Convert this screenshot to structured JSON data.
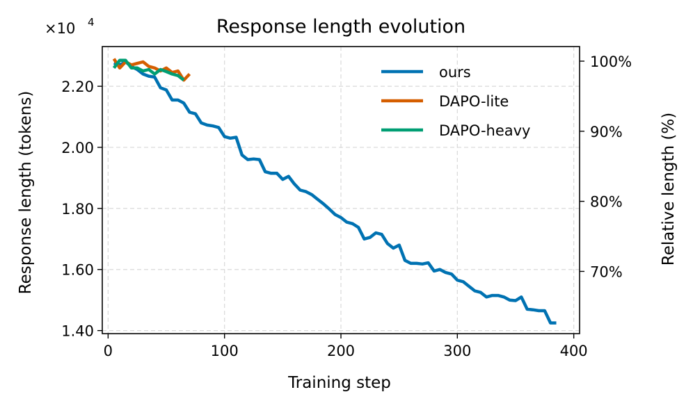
{
  "chart_data": {
    "type": "line",
    "title": "Response length evolution",
    "xlabel": "Training step",
    "ylabel": "Response length (tokens)",
    "y2label": "Relative length (%)",
    "y_multiplier_label": "×10",
    "y_multiplier_exponent": "4",
    "xlim": [
      -5,
      405
    ],
    "ylim": [
      13900,
      23300
    ],
    "y2lim_percent": [
      61.12,
      102.08
    ],
    "x_ticks": [
      0,
      100,
      200,
      300,
      400
    ],
    "x_tick_labels": [
      "0",
      "100",
      "200",
      "300",
      "400"
    ],
    "y_ticks": [
      14000,
      16000,
      18000,
      20000,
      22000
    ],
    "y_tick_labels": [
      "1.40",
      "1.60",
      "1.80",
      "2.00",
      "2.20"
    ],
    "y2_ticks": [
      70,
      80,
      90,
      100
    ],
    "y2_tick_labels": [
      "70%",
      "80%",
      "90%",
      "100%"
    ],
    "grid": true,
    "legend_position": "top-right",
    "series": [
      {
        "name": "ours",
        "color": "#0072b2",
        "x": [
          5,
          10,
          15,
          20,
          25,
          30,
          35,
          40,
          45,
          50,
          55,
          60,
          65,
          70,
          75,
          80,
          85,
          90,
          95,
          100,
          105,
          110,
          115,
          120,
          125,
          130,
          135,
          140,
          145,
          150,
          155,
          160,
          165,
          170,
          175,
          180,
          185,
          190,
          195,
          200,
          205,
          210,
          215,
          220,
          225,
          230,
          235,
          240,
          245,
          250,
          255,
          260,
          265,
          270,
          275,
          280,
          285,
          290,
          295,
          300,
          305,
          310,
          315,
          320,
          325,
          330,
          335,
          340,
          345,
          350,
          355,
          360,
          365,
          370,
          375,
          380,
          385
        ],
        "values": [
          22760,
          22700,
          22800,
          22650,
          22550,
          22400,
          22330,
          22300,
          21950,
          21880,
          21550,
          21550,
          21450,
          21150,
          21100,
          20800,
          20730,
          20700,
          20650,
          20350,
          20300,
          20330,
          19750,
          19600,
          19620,
          19600,
          19200,
          19150,
          19150,
          18950,
          19050,
          18800,
          18600,
          18550,
          18450,
          18300,
          18150,
          17980,
          17800,
          17700,
          17550,
          17500,
          17380,
          17000,
          17050,
          17200,
          17150,
          16850,
          16700,
          16800,
          16300,
          16200,
          16200,
          16180,
          16220,
          15950,
          16000,
          15900,
          15850,
          15650,
          15600,
          15450,
          15300,
          15250,
          15100,
          15150,
          15150,
          15100,
          15000,
          14980,
          15100,
          14700,
          14680,
          14650,
          14650,
          14250,
          14250
        ]
      },
      {
        "name": "DAPO-lite",
        "color": "#d55e00",
        "x": [
          5,
          10,
          15,
          20,
          25,
          30,
          35,
          40,
          45,
          50,
          55,
          60,
          65,
          70
        ],
        "values": [
          22900,
          22600,
          22800,
          22700,
          22750,
          22800,
          22650,
          22600,
          22500,
          22600,
          22450,
          22500,
          22200,
          22400
        ]
      },
      {
        "name": "DAPO-heavy",
        "color": "#009e73",
        "x": [
          5,
          10,
          15,
          20,
          25,
          30,
          35,
          40,
          45,
          50,
          55,
          60,
          65
        ],
        "values": [
          22600,
          22850,
          22850,
          22600,
          22600,
          22500,
          22550,
          22400,
          22550,
          22480,
          22400,
          22350,
          22200
        ]
      }
    ]
  }
}
